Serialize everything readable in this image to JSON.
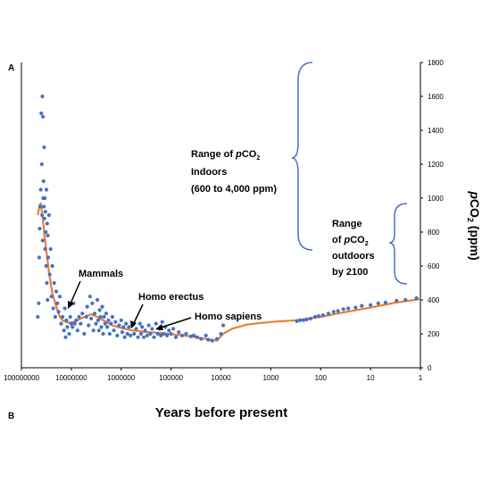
{
  "chart_data": {
    "type": "scatter",
    "panel_labels": [
      "A",
      "B"
    ],
    "xlabel": "Years before present",
    "ylabel": "pCO2 (ppm)",
    "x_scale": "log, reversed",
    "xlim": [
      100000000,
      1
    ],
    "ylim": [
      0,
      1800
    ],
    "x_ticks": [
      {
        "value": 100000000,
        "label": "100000000"
      },
      {
        "value": 10000000,
        "label": "10000000"
      },
      {
        "value": 1000000,
        "label": "1000000"
      },
      {
        "value": 100000,
        "label": "100000"
      },
      {
        "value": 10000,
        "label": "10000"
      },
      {
        "value": 1000,
        "label": "1000"
      },
      {
        "value": 100,
        "label": "100"
      },
      {
        "value": 10,
        "label": "10"
      },
      {
        "value": 1,
        "label": "1"
      }
    ],
    "y_ticks": [
      0,
      200,
      400,
      600,
      800,
      1000,
      1200,
      1400,
      1600,
      1800
    ],
    "grid": false,
    "colors": {
      "points": "#4472c4",
      "trend": "#ed7d31",
      "bracket": "#4472c4"
    },
    "series": [
      {
        "kind": "points",
        "points": [
          [
            47000000,
            300
          ],
          [
            45000000,
            380
          ],
          [
            44000000,
            650
          ],
          [
            43000000,
            820
          ],
          [
            42000000,
            950
          ],
          [
            41000000,
            1050
          ],
          [
            40000000,
            1500
          ],
          [
            39000000,
            1200
          ],
          [
            38500000,
            900
          ],
          [
            38000000,
            1600
          ],
          [
            37500000,
            750
          ],
          [
            37000000,
            1480
          ],
          [
            36500000,
            1000
          ],
          [
            36000000,
            1100
          ],
          [
            35500000,
            950
          ],
          [
            35000000,
            1300
          ],
          [
            34500000,
            880
          ],
          [
            34000000,
            1000
          ],
          [
            33500000,
            700
          ],
          [
            33000000,
            920
          ],
          [
            32500000,
            800
          ],
          [
            32000000,
            600
          ],
          [
            31500000,
            1050
          ],
          [
            31000000,
            500
          ],
          [
            30500000,
            850
          ],
          [
            30000000,
            400
          ],
          [
            29500000,
            780
          ],
          [
            29000000,
            650
          ],
          [
            28000000,
            900
          ],
          [
            27000000,
            550
          ],
          [
            26000000,
            700
          ],
          [
            25000000,
            420
          ],
          [
            24000000,
            600
          ],
          [
            23000000,
            350
          ],
          [
            22000000,
            500
          ],
          [
            21000000,
            300
          ],
          [
            20000000,
            450
          ],
          [
            19000000,
            380
          ],
          [
            18000000,
            330
          ],
          [
            17000000,
            420
          ],
          [
            16000000,
            260
          ],
          [
            15000000,
            300
          ],
          [
            14000000,
            220
          ],
          [
            13500000,
            350
          ],
          [
            13000000,
            180
          ],
          [
            12500000,
            280
          ],
          [
            12000000,
            240
          ],
          [
            11000000,
            200
          ],
          [
            10500000,
            300
          ],
          [
            10000000,
            260
          ],
          [
            9500000,
            240
          ],
          [
            9000000,
            380
          ],
          [
            8500000,
            260
          ],
          [
            8000000,
            280
          ],
          [
            7500000,
            220
          ],
          [
            7000000,
            300
          ],
          [
            6500000,
            260
          ],
          [
            6000000,
            320
          ],
          [
            5500000,
            200
          ],
          [
            5000000,
            300
          ],
          [
            4800000,
            360
          ],
          [
            4500000,
            250
          ],
          [
            4200000,
            420
          ],
          [
            4000000,
            290
          ],
          [
            3800000,
            380
          ],
          [
            3600000,
            220
          ],
          [
            3400000,
            320
          ],
          [
            3200000,
            260
          ],
          [
            3000000,
            400
          ],
          [
            2900000,
            280
          ],
          [
            2800000,
            220
          ],
          [
            2700000,
            340
          ],
          [
            2600000,
            300
          ],
          [
            2500000,
            240
          ],
          [
            2400000,
            360
          ],
          [
            2300000,
            200
          ],
          [
            2200000,
            300
          ],
          [
            2100000,
            260
          ],
          [
            2000000,
            320
          ],
          [
            1900000,
            240
          ],
          [
            1800000,
            280
          ],
          [
            1700000,
            200
          ],
          [
            1600000,
            260
          ],
          [
            1500000,
            300
          ],
          [
            1400000,
            220
          ],
          [
            1300000,
            270
          ],
          [
            1200000,
            190
          ],
          [
            1100000,
            250
          ],
          [
            1000000,
            280
          ],
          [
            950000,
            210
          ],
          [
            900000,
            240
          ],
          [
            850000,
            180
          ],
          [
            800000,
            260
          ],
          [
            750000,
            200
          ],
          [
            700000,
            240
          ],
          [
            650000,
            190
          ],
          [
            600000,
            250
          ],
          [
            550000,
            200
          ],
          [
            500000,
            230
          ],
          [
            460000,
            180
          ],
          [
            420000,
            260
          ],
          [
            400000,
            200
          ],
          [
            380000,
            240
          ],
          [
            350000,
            180
          ],
          [
            330000,
            220
          ],
          [
            300000,
            190
          ],
          [
            280000,
            250
          ],
          [
            260000,
            200
          ],
          [
            240000,
            230
          ],
          [
            220000,
            180
          ],
          [
            200000,
            260
          ],
          [
            185000,
            200
          ],
          [
            170000,
            230
          ],
          [
            160000,
            190
          ],
          [
            150000,
            270
          ],
          [
            140000,
            200
          ],
          [
            130000,
            240
          ],
          [
            120000,
            190
          ],
          [
            110000,
            220
          ],
          [
            100000,
            200
          ],
          [
            90000,
            230
          ],
          [
            80000,
            180
          ],
          [
            70000,
            210
          ],
          [
            60000,
            190
          ],
          [
            50000,
            200
          ],
          [
            40000,
            185
          ],
          [
            35000,
            190
          ],
          [
            30000,
            180
          ],
          [
            25000,
            170
          ],
          [
            20000,
            190
          ],
          [
            18000,
            165
          ],
          [
            15000,
            160
          ],
          [
            12000,
            170
          ],
          [
            10000,
            200
          ],
          [
            9000,
            250
          ],
          [
            300,
            275
          ],
          [
            260,
            280
          ],
          [
            220,
            280
          ],
          [
            190,
            285
          ],
          [
            160,
            290
          ],
          [
            130,
            300
          ],
          [
            110,
            305
          ],
          [
            90,
            310
          ],
          [
            70,
            320
          ],
          [
            55,
            330
          ],
          [
            45,
            335
          ],
          [
            35,
            345
          ],
          [
            28,
            350
          ],
          [
            20,
            355
          ],
          [
            15,
            365
          ],
          [
            10,
            370
          ],
          [
            7,
            380
          ],
          [
            5,
            385
          ],
          [
            3,
            395
          ],
          [
            2,
            400
          ],
          [
            1.2,
            410
          ]
        ]
      },
      {
        "kind": "trend",
        "points": [
          [
            47000000,
            900
          ],
          [
            44000000,
            950
          ],
          [
            41000000,
            970
          ],
          [
            38000000,
            900
          ],
          [
            35000000,
            800
          ],
          [
            32000000,
            700
          ],
          [
            28000000,
            560
          ],
          [
            24000000,
            440
          ],
          [
            20000000,
            360
          ],
          [
            17000000,
            300
          ],
          [
            15000000,
            280
          ],
          [
            13000000,
            270
          ],
          [
            11000000,
            265
          ],
          [
            9000000,
            270
          ],
          [
            7000000,
            285
          ],
          [
            5000000,
            305
          ],
          [
            4000000,
            315
          ],
          [
            3000000,
            300
          ],
          [
            2000000,
            270
          ],
          [
            1500000,
            250
          ],
          [
            1000000,
            235
          ],
          [
            600000,
            220
          ],
          [
            300000,
            210
          ],
          [
            150000,
            205
          ],
          [
            80000,
            195
          ],
          [
            40000,
            185
          ],
          [
            20000,
            170
          ],
          [
            12000,
            160
          ],
          [
            9000,
            200
          ],
          [
            6000,
            230
          ],
          [
            3000,
            255
          ],
          [
            1000,
            270
          ],
          [
            300,
            280
          ],
          [
            100,
            300
          ],
          [
            30,
            330
          ],
          [
            10,
            355
          ],
          [
            3,
            385
          ],
          [
            1,
            405
          ]
        ]
      }
    ],
    "annotations": [
      {
        "name": "mammals",
        "text": "Mammals"
      },
      {
        "name": "homo-erectus",
        "text": "Homo erectus"
      },
      {
        "name": "homo-sapiens",
        "text": "Homo sapiens"
      }
    ],
    "brackets": [
      {
        "name": "indoors",
        "lines": [
          "Range of pCO2",
          "Indoors",
          "(600 to 4,000 ppm)"
        ]
      },
      {
        "name": "outdoors",
        "lines": [
          "Range",
          "of pCO2",
          "outdoors",
          "by 2100"
        ]
      }
    ]
  }
}
